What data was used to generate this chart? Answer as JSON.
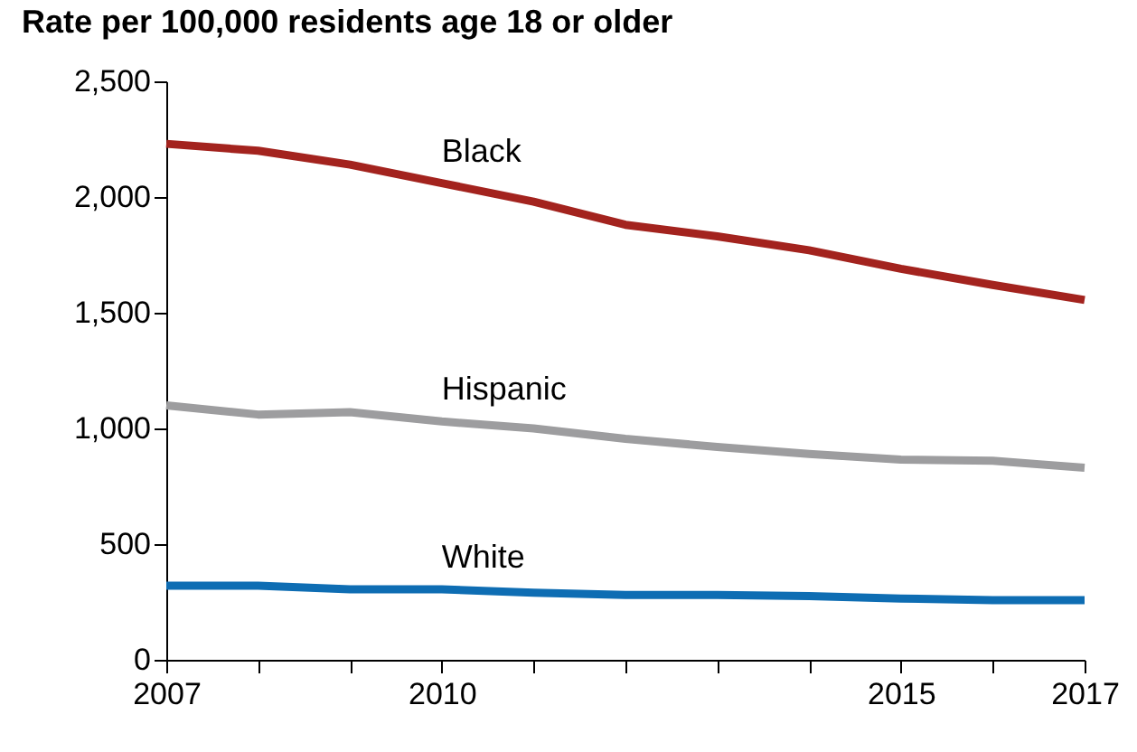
{
  "chart_data": {
    "type": "line",
    "title": "Rate per 100,000 residents age 18 or older",
    "x": [
      2007,
      2008,
      2009,
      2010,
      2011,
      2012,
      2013,
      2014,
      2015,
      2016,
      2017
    ],
    "series": [
      {
        "name": "Black",
        "color": "#a3231e",
        "values": [
          2230,
          2200,
          2140,
          2060,
          1980,
          1880,
          1830,
          1770,
          1690,
          1620,
          1555
        ]
      },
      {
        "name": "Hispanic",
        "color": "#9d9d9f",
        "values": [
          1100,
          1060,
          1070,
          1030,
          1000,
          955,
          920,
          890,
          865,
          860,
          830
        ]
      },
      {
        "name": "White",
        "color": "#0e6db3",
        "values": [
          320,
          320,
          305,
          305,
          290,
          280,
          280,
          275,
          265,
          258,
          258
        ]
      }
    ],
    "xlim": [
      2007,
      2017
    ],
    "xticks": [
      2007,
      {
        "value": 2008,
        "label": null
      },
      {
        "value": 2009,
        "label": null
      },
      2010,
      {
        "value": 2011,
        "label": null
      },
      {
        "value": 2012,
        "label": null
      },
      {
        "value": 2013,
        "label": null
      },
      {
        "value": 2014,
        "label": null
      },
      2015,
      {
        "value": 2016,
        "label": null
      },
      2017
    ],
    "ylim": [
      0,
      2500
    ],
    "yticks": [
      {
        "value": 0,
        "label": "0"
      },
      {
        "value": 500,
        "label": "500"
      },
      {
        "value": 1000,
        "label": "1,000"
      },
      {
        "value": 1500,
        "label": "1,500"
      },
      {
        "value": 2000,
        "label": "2,000"
      },
      {
        "value": 2500,
        "label": "2,500"
      }
    ],
    "grid": false,
    "marker": "none",
    "line_style": "solid"
  }
}
